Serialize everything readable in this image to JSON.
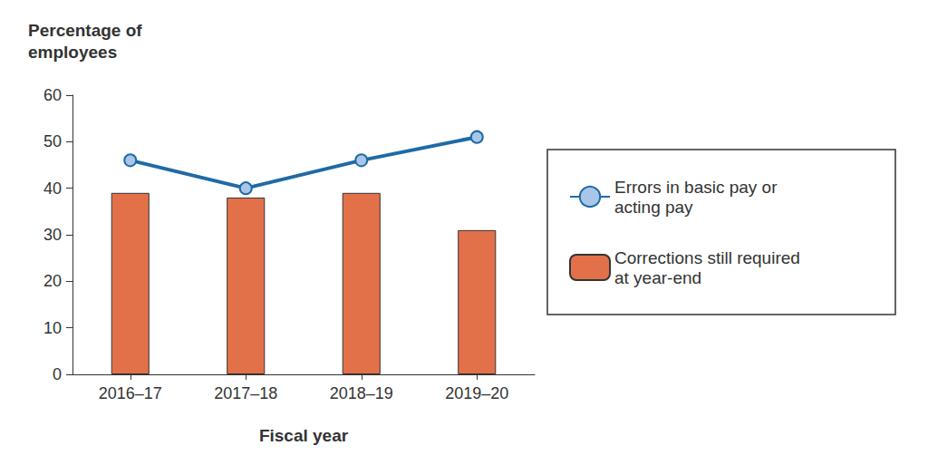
{
  "chart_data": {
    "type": "bar",
    "ylabel": "Percentage of employees",
    "xlabel": "Fiscal year",
    "categories": [
      "2016–17",
      "2017–18",
      "2018–19",
      "2019–20"
    ],
    "series": [
      {
        "name": "Errors in basic pay or acting pay",
        "type": "line",
        "color": "#1f6aa5",
        "marker": "circle",
        "values": [
          46,
          40,
          46,
          51
        ]
      },
      {
        "name": "Corrections still required at year-end",
        "type": "bar",
        "color": "#e2714a",
        "values": [
          39,
          38,
          39,
          31
        ]
      }
    ],
    "ylim": [
      0,
      60
    ],
    "yticks": [
      0,
      10,
      20,
      30,
      40,
      50,
      60
    ],
    "grid": false,
    "legend": "right"
  }
}
